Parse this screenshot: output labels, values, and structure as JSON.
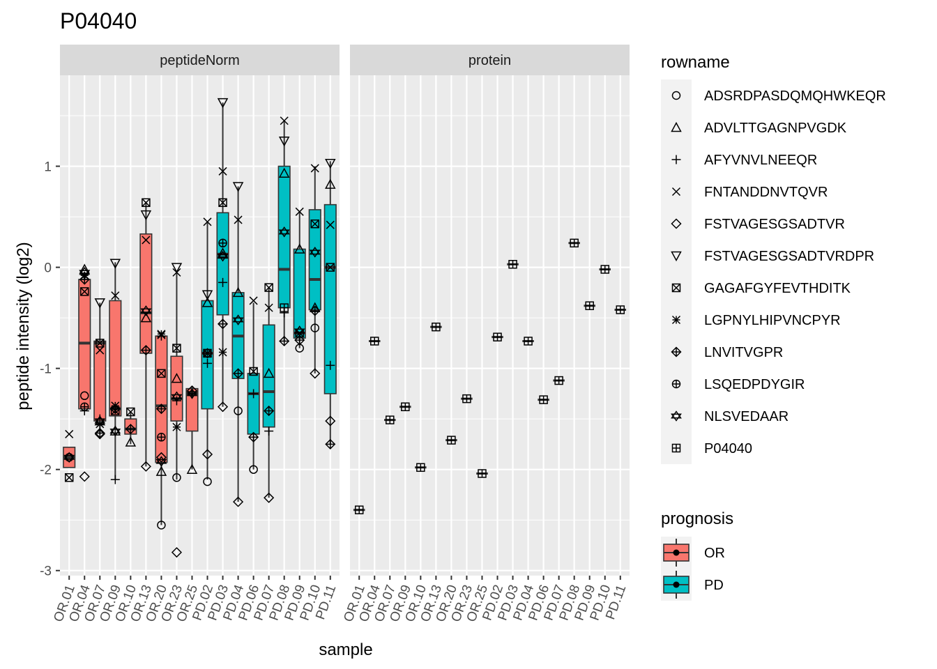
{
  "title": "P04040",
  "colors": {
    "OR": "#F8766D",
    "PD": "#00BFC4",
    "panel_bg": "#EBEBEB",
    "strip_bg": "#D9D9D9",
    "legend_key_bg": "#F2F2F2"
  },
  "chart_data": {
    "type": "box",
    "title": "P04040",
    "xlabel": "sample",
    "ylabel": "peptide intensity (log2)",
    "ylim": [
      -3.05,
      1.9
    ],
    "yticks": [
      -3,
      -2,
      -1,
      0,
      1
    ],
    "grid": true,
    "legend_position": "right",
    "samples": [
      "OR.01",
      "OR.04",
      "OR.07",
      "OR.09",
      "OR.10",
      "OR.13",
      "OR.20",
      "OR.23",
      "OR.25",
      "PD.02",
      "PD.03",
      "PD.04",
      "PD.06",
      "PD.07",
      "PD.08",
      "PD.09",
      "PD.10",
      "PD.11"
    ],
    "prognosis": [
      "OR",
      "OR",
      "OR",
      "OR",
      "OR",
      "OR",
      "OR",
      "OR",
      "OR",
      "PD",
      "PD",
      "PD",
      "PD",
      "PD",
      "PD",
      "PD",
      "PD",
      "PD"
    ],
    "rownames": [
      "ADSRDPASDQMQHWKEQR",
      "ADVLTTGAGNPVGDK",
      "AFYVNVLNEEQR",
      "FNTANDDNVTQVR",
      "FSTVAGESGSADTVR",
      "FSTVAGESGSADTVRDPR",
      "GAGAFGYFEVTHDITK",
      "LGPNYLHIPVNCPYR",
      "LNVITVGPR",
      "LSQEDPDYGIR",
      "NLSVEDAAR",
      "P04040"
    ],
    "shapes": [
      "circle",
      "triangle",
      "plus",
      "cross",
      "diamond",
      "triangle-down",
      "square-cross",
      "asterisk",
      "diamond-plus",
      "circle-plus",
      "star-of-david",
      "square-plus"
    ],
    "legend_rowname_title": "rowname",
    "legend_prognosis_title": "prognosis",
    "legend_prognosis_labels": [
      "OR",
      "PD"
    ],
    "panels": [
      {
        "strip": "peptideNorm",
        "boxes": [
          {
            "q1": -1.98,
            "median": -1.88,
            "q3": -1.78,
            "lower": -1.98,
            "upper": -1.78
          },
          {
            "q1": -1.4,
            "median": -0.75,
            "q3": -0.12,
            "lower": -1.4,
            "upper": -0.05
          },
          {
            "q1": -1.52,
            "median": -0.75,
            "q3": -0.73,
            "lower": -1.65,
            "upper": -0.35
          },
          {
            "q1": -1.47,
            "median": -1.4,
            "q3": -0.33,
            "lower": -2.1,
            "upper": 0.05
          },
          {
            "q1": -1.65,
            "median": -1.6,
            "q3": -1.5,
            "lower": -1.75,
            "upper": -1.43
          },
          {
            "q1": -0.85,
            "median": -0.45,
            "q3": 0.33,
            "lower": -1.97,
            "upper": 0.65
          },
          {
            "q1": -1.93,
            "median": -1.37,
            "q3": -0.68,
            "lower": -2.55,
            "upper": -0.67
          },
          {
            "q1": -1.52,
            "median": -1.3,
            "q3": -0.88,
            "lower": -2.1,
            "upper": -0.05
          },
          {
            "q1": -1.62,
            "median": -1.25,
            "q3": -1.2,
            "lower": -2.0,
            "upper": -1.18
          },
          {
            "q1": -1.4,
            "median": -0.85,
            "q3": -0.33,
            "lower": -2.1,
            "upper": 0.45
          },
          {
            "q1": -0.47,
            "median": 0.13,
            "q3": 0.54,
            "lower": -1.38,
            "upper": 1.63
          },
          {
            "q1": -1.1,
            "median": -0.68,
            "q3": -0.25,
            "lower": -2.32,
            "upper": 0.8
          },
          {
            "q1": -1.65,
            "median": -1.25,
            "q3": -1.05,
            "lower": -2.0,
            "upper": -0.35
          },
          {
            "q1": -1.58,
            "median": -1.23,
            "q3": -0.57,
            "lower": -2.28,
            "upper": -0.2
          },
          {
            "q1": -0.4,
            "median": -0.02,
            "q3": 1.0,
            "lower": -0.73,
            "upper": 1.45
          },
          {
            "q1": -0.7,
            "median": -0.65,
            "q3": 0.18,
            "lower": -0.8,
            "upper": 0.55
          },
          {
            "q1": -0.42,
            "median": -0.12,
            "q3": 0.57,
            "lower": -1.05,
            "upper": 1.0
          },
          {
            "q1": -1.25,
            "median": 0.0,
            "q3": 0.62,
            "lower": -1.75,
            "upper": 1.05
          }
        ],
        "points": [
          [
            [
              0,
              -1.88
            ],
            [
              3,
              -1.65
            ],
            [
              6,
              -2.08
            ],
            [
              10,
              -1.88
            ]
          ],
          [
            [
              0,
              -1.27
            ],
            [
              1,
              -0.02
            ],
            [
              2,
              -1.42
            ],
            [
              3,
              -0.08
            ],
            [
              4,
              -2.07
            ],
            [
              5,
              -0.07
            ],
            [
              6,
              -0.24
            ],
            [
              7,
              -0.08
            ],
            [
              8,
              -0.12
            ],
            [
              9,
              -1.38
            ],
            [
              10,
              -0.05
            ]
          ],
          [
            [
              1,
              -1.52
            ],
            [
              2,
              -1.5
            ],
            [
              3,
              -0.82
            ],
            [
              4,
              -1.65
            ],
            [
              5,
              -0.35
            ],
            [
              6,
              -0.75
            ],
            [
              7,
              -1.55
            ],
            [
              8,
              -1.64
            ],
            [
              10,
              -1.52
            ]
          ],
          [
            [
              1,
              -1.62
            ],
            [
              2,
              -2.1
            ],
            [
              3,
              -0.28
            ],
            [
              5,
              0.04
            ],
            [
              6,
              -1.42
            ],
            [
              7,
              -1.37
            ],
            [
              8,
              -1.4
            ],
            [
              10,
              -1.62
            ]
          ],
          [
            [
              1,
              -1.73
            ],
            [
              6,
              -1.43
            ],
            [
              8,
              -1.6
            ]
          ],
          [
            [
              1,
              -0.5
            ],
            [
              3,
              0.27
            ],
            [
              4,
              -1.97
            ],
            [
              5,
              0.52
            ],
            [
              6,
              0.64
            ],
            [
              8,
              -0.82
            ],
            [
              10,
              -0.43
            ]
          ],
          [
            [
              0,
              -2.55
            ],
            [
              1,
              -2.02
            ],
            [
              2,
              -0.68
            ],
            [
              3,
              -0.67
            ],
            [
              4,
              -1.88
            ],
            [
              6,
              -1.05
            ],
            [
              7,
              -0.66
            ],
            [
              8,
              -1.4
            ],
            [
              9,
              -1.68
            ],
            [
              10,
              -1.92
            ]
          ],
          [
            [
              0,
              -2.08
            ],
            [
              1,
              -1.1
            ],
            [
              2,
              -1.32
            ],
            [
              3,
              -0.05
            ],
            [
              4,
              -2.82
            ],
            [
              5,
              0.0
            ],
            [
              6,
              -0.8
            ],
            [
              7,
              -1.58
            ],
            [
              10,
              -1.28
            ]
          ],
          [
            [
              1,
              -2.0
            ],
            [
              2,
              -1.25
            ],
            [
              4,
              -1.22
            ],
            [
              10,
              -1.25
            ]
          ],
          [
            [
              0,
              -2.12
            ],
            [
              1,
              -0.35
            ],
            [
              2,
              -0.95
            ],
            [
              3,
              0.45
            ],
            [
              4,
              -1.85
            ],
            [
              5,
              -0.27
            ],
            [
              6,
              -0.85
            ],
            [
              8,
              -0.85
            ]
          ],
          [
            [
              1,
              0.14
            ],
            [
              2,
              -0.15
            ],
            [
              3,
              0.95
            ],
            [
              4,
              -1.38
            ],
            [
              5,
              1.63
            ],
            [
              6,
              0.64
            ],
            [
              7,
              -0.84
            ],
            [
              8,
              -0.56
            ],
            [
              9,
              0.24
            ],
            [
              10,
              0.11
            ]
          ],
          [
            [
              0,
              -1.42
            ],
            [
              1,
              -0.25
            ],
            [
              3,
              0.47
            ],
            [
              4,
              -2.32
            ],
            [
              5,
              0.8
            ],
            [
              8,
              -1.05
            ],
            [
              10,
              -0.52
            ]
          ],
          [
            [
              0,
              -2.0
            ],
            [
              2,
              -1.25
            ],
            [
              3,
              -0.33
            ],
            [
              6,
              -1.03
            ],
            [
              8,
              -1.68
            ]
          ],
          [
            [
              1,
              -1.05
            ],
            [
              2,
              -1.62
            ],
            [
              3,
              -0.4
            ],
            [
              4,
              -2.28
            ],
            [
              6,
              -0.2
            ],
            [
              8,
              -1.42
            ]
          ],
          [
            [
              1,
              0.93
            ],
            [
              2,
              -0.45
            ],
            [
              3,
              1.45
            ],
            [
              5,
              1.25
            ],
            [
              8,
              -0.73
            ],
            [
              10,
              0.35
            ],
            [
              11,
              -0.4
            ]
          ],
          [
            [
              0,
              -0.8
            ],
            [
              1,
              0.18
            ],
            [
              3,
              0.55
            ],
            [
              8,
              -0.72
            ],
            [
              10,
              -0.63
            ],
            [
              6,
              -0.65
            ]
          ],
          [
            [
              0,
              -0.6
            ],
            [
              1,
              -0.4
            ],
            [
              3,
              0.98
            ],
            [
              4,
              -1.05
            ],
            [
              6,
              0.43
            ],
            [
              10,
              0.15
            ],
            [
              8,
              -0.43
            ]
          ],
          [
            [
              1,
              0.82
            ],
            [
              2,
              -0.97
            ],
            [
              3,
              0.42
            ],
            [
              4,
              -1.52
            ],
            [
              5,
              1.03
            ],
            [
              6,
              0.0
            ],
            [
              8,
              -1.75
            ]
          ]
        ]
      },
      {
        "strip": "protein",
        "values": [
          -2.4,
          -0.73,
          -1.51,
          -1.38,
          -1.98,
          -0.59,
          -1.71,
          -1.3,
          -2.04,
          -0.69,
          0.03,
          -0.73,
          -1.31,
          -1.12,
          0.24,
          -0.38,
          -0.02,
          -0.42
        ]
      }
    ]
  }
}
